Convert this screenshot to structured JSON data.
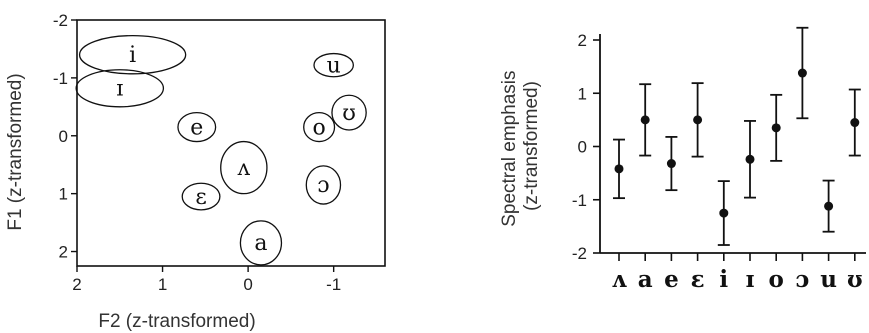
{
  "chart_data": [
    {
      "type": "scatter",
      "xlabel": "F2 (z-transformed)",
      "ylabel": "F1 (z-transformed)",
      "xlim": [
        2,
        -1.6
      ],
      "ylim": [
        -2,
        2.25
      ],
      "xticks": [
        2,
        1,
        0,
        -1
      ],
      "yticks": [
        -2,
        -1,
        0,
        1,
        2
      ],
      "xtick_labels": [
        "2",
        "1",
        "0",
        "-1"
      ],
      "ytick_labels": [
        "-2",
        "-1",
        "0",
        "1",
        "2"
      ],
      "grid": false,
      "points": [
        {
          "label": "i",
          "x": 1.35,
          "y": -1.4,
          "rx": 0.62,
          "ry": 0.33
        },
        {
          "label": "ɪ",
          "x": 1.5,
          "y": -0.82,
          "rx": 0.51,
          "ry": 0.32
        },
        {
          "label": "e",
          "x": 0.6,
          "y": -0.15,
          "rx": 0.22,
          "ry": 0.25
        },
        {
          "label": "ɛ",
          "x": 0.55,
          "y": 1.05,
          "rx": 0.22,
          "ry": 0.23
        },
        {
          "label": "ʌ",
          "x": 0.05,
          "y": 0.55,
          "rx": 0.27,
          "ry": 0.45
        },
        {
          "label": "a",
          "x": -0.15,
          "y": 1.85,
          "rx": 0.24,
          "ry": 0.38
        },
        {
          "label": "u",
          "x": -1.0,
          "y": -1.22,
          "rx": 0.23,
          "ry": 0.2
        },
        {
          "label": "o",
          "x": -0.83,
          "y": -0.15,
          "rx": 0.18,
          "ry": 0.25
        },
        {
          "label": "ʊ",
          "x": -1.18,
          "y": -0.4,
          "rx": 0.2,
          "ry": 0.3
        },
        {
          "label": "ɔ",
          "x": -0.88,
          "y": 0.85,
          "rx": 0.2,
          "ry": 0.33
        }
      ]
    },
    {
      "type": "errorbar",
      "ylabel": "Spectral emphasis\n(z-transformed)",
      "ylim": [
        -2,
        2.3
      ],
      "yticks": [
        -2,
        -1,
        0,
        1,
        2
      ],
      "ytick_labels": [
        "-2",
        "-1",
        "0",
        "1",
        "2"
      ],
      "categories": [
        "ʌ",
        "a",
        "e",
        "ɛ",
        "i",
        "ɪ",
        "o",
        "ɔ",
        "u",
        "ʊ"
      ],
      "values": [
        -0.42,
        0.5,
        -0.32,
        0.5,
        -1.25,
        -0.24,
        0.35,
        1.38,
        -1.12,
        0.45
      ],
      "errors": [
        0.55,
        0.67,
        0.5,
        0.69,
        0.6,
        0.72,
        0.62,
        0.85,
        0.48,
        0.62
      ],
      "grid": false
    }
  ]
}
